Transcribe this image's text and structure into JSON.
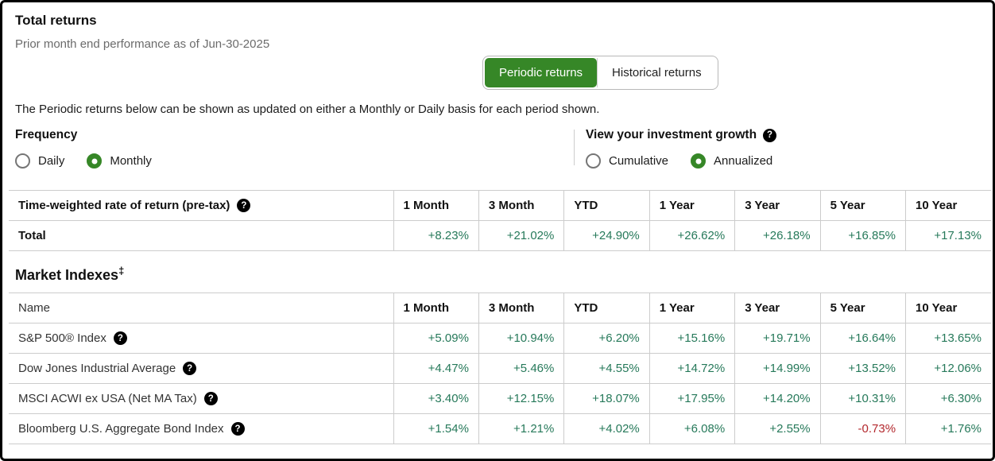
{
  "page": {
    "title": "Total returns",
    "subtitle": "Prior month end performance as of Jun-30-2025",
    "description": "The Periodic returns below can be shown as updated on either a Monthly or Daily basis for each period shown."
  },
  "toggle": {
    "periodic_label": "Periodic returns",
    "historical_label": "Historical returns",
    "active": "Periodic returns"
  },
  "frequency": {
    "heading": "Frequency",
    "options": [
      {
        "label": "Daily",
        "selected": false
      },
      {
        "label": "Monthly",
        "selected": true
      }
    ]
  },
  "growth": {
    "heading": "View your investment growth",
    "options": [
      {
        "label": "Cumulative",
        "selected": false
      },
      {
        "label": "Annualized",
        "selected": true
      }
    ]
  },
  "returns_table": {
    "header_label": "Time-weighted rate of return (pre-tax)",
    "columns": [
      "1 Month",
      "3 Month",
      "YTD",
      "1 Year",
      "3 Year",
      "5 Year",
      "10 Year"
    ],
    "rows": [
      {
        "name": "Total",
        "bold": true,
        "help": false,
        "values": [
          "+8.23%",
          "+21.02%",
          "+24.90%",
          "+26.62%",
          "+26.18%",
          "+16.85%",
          "+17.13%"
        ]
      }
    ]
  },
  "market_indexes": {
    "heading": "Market Indexes",
    "heading_superscript": "‡",
    "name_column": "Name",
    "columns": [
      "1 Month",
      "3 Month",
      "YTD",
      "1 Year",
      "3 Year",
      "5 Year",
      "10 Year"
    ],
    "rows": [
      {
        "name": "S&P 500® Index",
        "bold": false,
        "help": true,
        "values": [
          "+5.09%",
          "+10.94%",
          "+6.20%",
          "+15.16%",
          "+19.71%",
          "+16.64%",
          "+13.65%"
        ]
      },
      {
        "name": "Dow Jones Industrial Average",
        "bold": false,
        "help": true,
        "values": [
          "+4.47%",
          "+5.46%",
          "+4.55%",
          "+14.72%",
          "+14.99%",
          "+13.52%",
          "+12.06%"
        ]
      },
      {
        "name": "MSCI ACWI ex USA (Net MA Tax)",
        "bold": false,
        "help": true,
        "values": [
          "+3.40%",
          "+12.15%",
          "+18.07%",
          "+17.95%",
          "+14.20%",
          "+10.31%",
          "+6.30%"
        ]
      },
      {
        "name": "Bloomberg U.S. Aggregate Bond Index",
        "bold": false,
        "help": true,
        "values": [
          "+1.54%",
          "+1.21%",
          "+4.02%",
          "+6.08%",
          "+2.55%",
          "-0.73%",
          "+1.76%"
        ]
      }
    ]
  },
  "icons": {
    "help_glyph": "?"
  },
  "colors": {
    "accent_green": "#368727",
    "positive_value": "#26795a",
    "negative_value": "#b3282d",
    "border_gray": "#cccccc"
  }
}
